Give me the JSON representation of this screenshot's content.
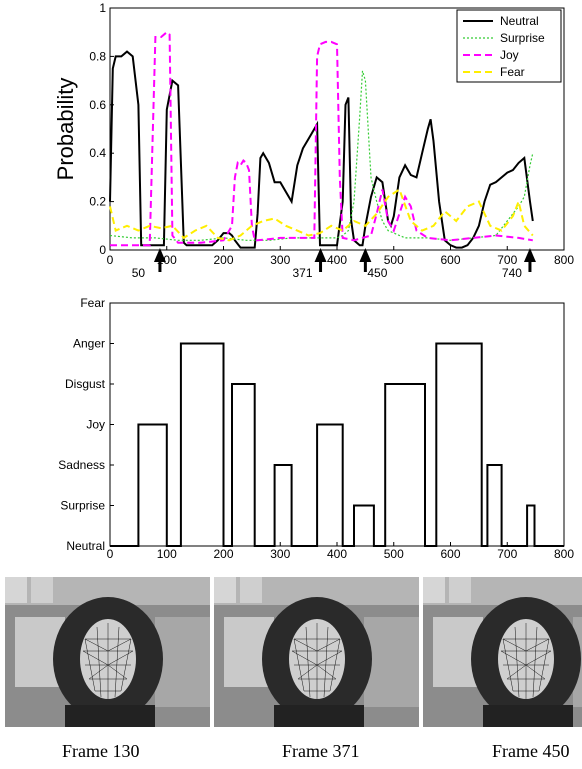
{
  "chart_data": [
    {
      "type": "line",
      "title": "",
      "xlabel": "",
      "ylabel": "Probability",
      "xlim": [
        0,
        800
      ],
      "ylim": [
        0,
        1
      ],
      "xticks": [
        0,
        100,
        200,
        300,
        400,
        500,
        600,
        700,
        800
      ],
      "yticks": [
        0,
        0.2,
        0.4,
        0.6,
        0.8,
        1
      ],
      "yticklabels": [
        "0",
        "0.2",
        "0.4",
        "0.6",
        "0.8",
        "1"
      ],
      "legend": "top-right",
      "grid": false,
      "colors": {
        "Neutral": "#000000",
        "Surprise": "#33cc33",
        "Joy": "#ff00ff",
        "Fear": "#ffee00"
      },
      "series": [
        {
          "name": "Neutral",
          "x": [
            0,
            5,
            10,
            20,
            30,
            40,
            50,
            55,
            60,
            70,
            80,
            88,
            95,
            100,
            110,
            120,
            130,
            135,
            140,
            150,
            160,
            170,
            180,
            190,
            200,
            210,
            215,
            220,
            230,
            240,
            250,
            255,
            260,
            265,
            270,
            280,
            290,
            300,
            310,
            320,
            330,
            340,
            350,
            360,
            365,
            370,
            380,
            390,
            400,
            410,
            415,
            420,
            425,
            430,
            440,
            445,
            450,
            460,
            470,
            480,
            490,
            495,
            500,
            510,
            520,
            530,
            540,
            550,
            560,
            565,
            570,
            580,
            590,
            600,
            610,
            620,
            630,
            640,
            650,
            660,
            670,
            680,
            690,
            700,
            710,
            720,
            730,
            740,
            745
          ],
          "y": [
            0.2,
            0.75,
            0.8,
            0.8,
            0.82,
            0.8,
            0.6,
            0.02,
            0.02,
            0.02,
            0.02,
            0.02,
            0.02,
            0.58,
            0.7,
            0.68,
            0.03,
            0.02,
            0.02,
            0.02,
            0.02,
            0.02,
            0.02,
            0.04,
            0.07,
            0.07,
            0.06,
            0.04,
            0.01,
            0.01,
            0.01,
            0.01,
            0.15,
            0.38,
            0.4,
            0.36,
            0.28,
            0.28,
            0.24,
            0.2,
            0.35,
            0.42,
            0.46,
            0.5,
            0.52,
            0.02,
            0.02,
            0.02,
            0.02,
            0.2,
            0.6,
            0.63,
            0.12,
            0.04,
            0.02,
            0.02,
            0.1,
            0.22,
            0.3,
            0.28,
            0.12,
            0.1,
            0.14,
            0.3,
            0.35,
            0.31,
            0.3,
            0.4,
            0.5,
            0.54,
            0.45,
            0.2,
            0.04,
            0.02,
            0.01,
            0.01,
            0.02,
            0.05,
            0.1,
            0.2,
            0.27,
            0.28,
            0.3,
            0.32,
            0.33,
            0.36,
            0.38,
            0.2,
            0.12
          ]
        },
        {
          "name": "Surprise",
          "x": [
            0,
            40,
            80,
            120,
            160,
            200,
            240,
            280,
            320,
            360,
            400,
            410,
            420,
            430,
            440,
            445,
            450,
            455,
            460,
            470,
            480,
            490,
            520,
            560,
            600,
            640,
            680,
            720,
            730,
            740,
            745
          ],
          "y": [
            0.06,
            0.05,
            0.05,
            0.04,
            0.04,
            0.05,
            0.04,
            0.04,
            0.05,
            0.05,
            0.05,
            0.06,
            0.08,
            0.2,
            0.55,
            0.74,
            0.7,
            0.5,
            0.3,
            0.2,
            0.12,
            0.08,
            0.05,
            0.05,
            0.04,
            0.05,
            0.06,
            0.18,
            0.22,
            0.35,
            0.4
          ]
        },
        {
          "name": "Joy",
          "x": [
            0,
            40,
            70,
            80,
            90,
            100,
            105,
            110,
            120,
            160,
            200,
            215,
            220,
            225,
            230,
            235,
            240,
            245,
            250,
            255,
            260,
            300,
            360,
            365,
            370,
            380,
            390,
            400,
            405,
            410,
            430,
            460,
            470,
            480,
            490,
            500,
            510,
            520,
            530,
            540,
            560,
            600,
            640,
            680,
            720,
            745
          ],
          "y": [
            0.02,
            0.02,
            0.02,
            0.88,
            0.88,
            0.9,
            0.89,
            0.06,
            0.03,
            0.03,
            0.04,
            0.1,
            0.3,
            0.36,
            0.35,
            0.37,
            0.36,
            0.33,
            0.1,
            0.04,
            0.04,
            0.05,
            0.05,
            0.8,
            0.85,
            0.86,
            0.86,
            0.85,
            0.3,
            0.05,
            0.04,
            0.06,
            0.15,
            0.25,
            0.12,
            0.08,
            0.15,
            0.22,
            0.18,
            0.08,
            0.05,
            0.04,
            0.05,
            0.06,
            0.05,
            0.04
          ]
        },
        {
          "name": "Fear",
          "x": [
            0,
            10,
            30,
            50,
            70,
            90,
            110,
            130,
            150,
            170,
            190,
            210,
            230,
            250,
            270,
            290,
            310,
            330,
            350,
            370,
            390,
            410,
            430,
            450,
            470,
            490,
            510,
            530,
            550,
            570,
            590,
            610,
            630,
            650,
            670,
            690,
            710,
            720,
            730,
            745
          ],
          "y": [
            0.18,
            0.08,
            0.1,
            0.08,
            0.1,
            0.09,
            0.1,
            0.05,
            0.08,
            0.1,
            0.05,
            0.04,
            0.06,
            0.1,
            0.12,
            0.13,
            0.1,
            0.08,
            0.06,
            0.07,
            0.1,
            0.08,
            0.12,
            0.1,
            0.15,
            0.22,
            0.25,
            0.12,
            0.08,
            0.1,
            0.16,
            0.12,
            0.18,
            0.2,
            0.1,
            0.08,
            0.14,
            0.2,
            0.1,
            0.06
          ]
        }
      ],
      "annotations": [
        {
          "label": "50",
          "x": 50,
          "arrow": false
        },
        {
          "label": "",
          "x": 88,
          "arrow": true
        },
        {
          "label": "371",
          "x": 371,
          "arrow": true
        },
        {
          "label": "450",
          "x": 450,
          "arrow": true
        },
        {
          "label": "740",
          "x": 740,
          "arrow": true
        }
      ]
    },
    {
      "type": "line",
      "step": true,
      "title": "",
      "xlabel": "",
      "ylabel": "",
      "xlim": [
        0,
        800
      ],
      "xticks": [
        0,
        100,
        200,
        300,
        400,
        500,
        600,
        700,
        800
      ],
      "categories": [
        "Neutral",
        "Surprise",
        "Sadness",
        "Joy",
        "Disgust",
        "Anger",
        "Fear"
      ],
      "series": [
        {
          "name": "",
          "color": "#000000",
          "x": [
            0,
            50,
            50,
            100,
            100,
            125,
            125,
            200,
            200,
            215,
            215,
            255,
            255,
            290,
            290,
            320,
            320,
            365,
            365,
            410,
            410,
            430,
            430,
            465,
            465,
            485,
            485,
            555,
            555,
            575,
            575,
            655,
            655,
            665,
            665,
            690,
            690,
            735,
            735,
            748,
            748,
            800
          ],
          "y": [
            0,
            0,
            3,
            3,
            0,
            0,
            5,
            5,
            0,
            0,
            4,
            4,
            0,
            0,
            2,
            2,
            0,
            0,
            3,
            3,
            0,
            0,
            1,
            1,
            0,
            0,
            4,
            4,
            0,
            0,
            5,
            5,
            0,
            0,
            2,
            2,
            0,
            0,
            1,
            1,
            0,
            0
          ]
        }
      ]
    }
  ],
  "frames": [
    {
      "caption": "Frame 130"
    },
    {
      "caption": "Frame 371"
    },
    {
      "caption": "Frame 450"
    }
  ]
}
